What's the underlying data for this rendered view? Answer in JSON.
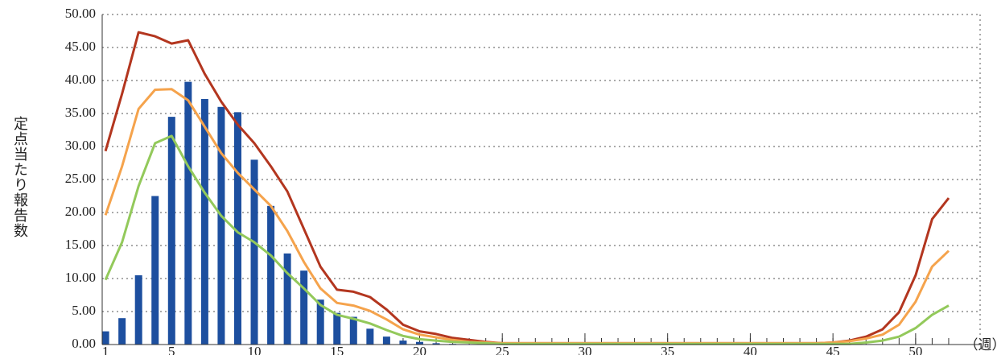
{
  "chart_data": {
    "type": "bar",
    "y_label": "定点当たり報告数",
    "x_unit": "（週）",
    "x": [
      1,
      2,
      3,
      4,
      5,
      6,
      7,
      8,
      9,
      10,
      11,
      12,
      13,
      14,
      15,
      16,
      17,
      18,
      19,
      20,
      21,
      22,
      23,
      24,
      25,
      26,
      27,
      28,
      29,
      30,
      31,
      32,
      33,
      34,
      35,
      36,
      37,
      38,
      39,
      40,
      41,
      42,
      43,
      44,
      45,
      46,
      47,
      48,
      49,
      50,
      51,
      52
    ],
    "xlim": [
      0.8,
      53.9
    ],
    "xticks": [
      1,
      5,
      10,
      15,
      20,
      25,
      30,
      35,
      40,
      45,
      50
    ],
    "ylim": [
      0,
      50
    ],
    "yticks": [
      {
        "value": 0,
        "label": "0.00"
      },
      {
        "value": 5,
        "label": "5.00"
      },
      {
        "value": 10,
        "label": "10.00"
      },
      {
        "value": 15,
        "label": "15.00"
      },
      {
        "value": 20,
        "label": "20.00"
      },
      {
        "value": 25,
        "label": "25.00"
      },
      {
        "value": 30,
        "label": "30.00"
      },
      {
        "value": 35,
        "label": "35.00"
      },
      {
        "value": 40,
        "label": "40.00"
      },
      {
        "value": 45,
        "label": "45.00"
      },
      {
        "value": 50,
        "label": "50.00"
      }
    ],
    "grid": true,
    "series": [
      {
        "type": "bar",
        "color": "#1d4f9f",
        "values": [
          2.0,
          4.0,
          10.5,
          22.5,
          34.5,
          39.8,
          37.2,
          36.0,
          35.2,
          28.0,
          21.0,
          13.8,
          11.2,
          6.8,
          4.8,
          4.2,
          2.4,
          1.2,
          0.6,
          0.4,
          0.2,
          0.1,
          0.05,
          0.05,
          0.05,
          0.05,
          0.05,
          0.05,
          0.05,
          0.05,
          0.05,
          0.05,
          0.05,
          0.05,
          0.05,
          0.05,
          0.05,
          0.05,
          0.05,
          0.1,
          0.1,
          null,
          null,
          null,
          null,
          null,
          null,
          null,
          null,
          null,
          null,
          null
        ]
      },
      {
        "type": "line",
        "color": "#b3361f",
        "values": [
          29.3,
          38,
          47.3,
          46.7,
          45.6,
          46.1,
          41,
          36.8,
          33.3,
          30.5,
          27,
          23.2,
          17.5,
          11.8,
          8.3,
          8.0,
          7.2,
          5.3,
          3.0,
          2.0,
          1.6,
          1.0,
          0.7,
          0.4,
          0.2,
          0.2,
          0.2,
          0.2,
          0.2,
          0.2,
          0.2,
          0.2,
          0.2,
          0.2,
          0.2,
          0.2,
          0.2,
          0.2,
          0.2,
          0.2,
          0.2,
          0.2,
          0.2,
          0.2,
          0.3,
          0.6,
          1.2,
          2.3,
          4.9,
          10.5,
          19,
          22.2
        ]
      },
      {
        "type": "line",
        "color": "#f5a34c",
        "values": [
          19.6,
          27,
          35.7,
          38.6,
          38.7,
          37,
          33,
          29,
          26,
          23.5,
          21,
          17.2,
          12.5,
          8.5,
          6.3,
          5.9,
          5.1,
          3.8,
          2.3,
          1.5,
          1.1,
          0.7,
          0.4,
          0.3,
          0.2,
          0.2,
          0.2,
          0.2,
          0.2,
          0.2,
          0.2,
          0.2,
          0.2,
          0.2,
          0.2,
          0.2,
          0.2,
          0.2,
          0.2,
          0.2,
          0.2,
          0.2,
          0.2,
          0.2,
          0.3,
          0.5,
          0.9,
          1.5,
          3.0,
          6.5,
          11.8,
          14.2
        ]
      },
      {
        "type": "line",
        "color": "#93c95b",
        "values": [
          9.8,
          15.5,
          24,
          30.5,
          31.6,
          27,
          23,
          19.5,
          17,
          15.5,
          13.5,
          10.8,
          8.5,
          6.0,
          4.5,
          3.9,
          3.2,
          2.2,
          1.3,
          0.8,
          0.6,
          0.4,
          0.3,
          0.2,
          0.1,
          0.1,
          0.1,
          0.1,
          0.1,
          0.1,
          0.1,
          0.1,
          0.1,
          0.1,
          0.1,
          0.1,
          0.1,
          0.1,
          0.1,
          0.1,
          0.1,
          0.1,
          0.1,
          0.1,
          0.1,
          0.1,
          0.3,
          0.6,
          1.2,
          2.5,
          4.5,
          5.9
        ]
      }
    ]
  }
}
